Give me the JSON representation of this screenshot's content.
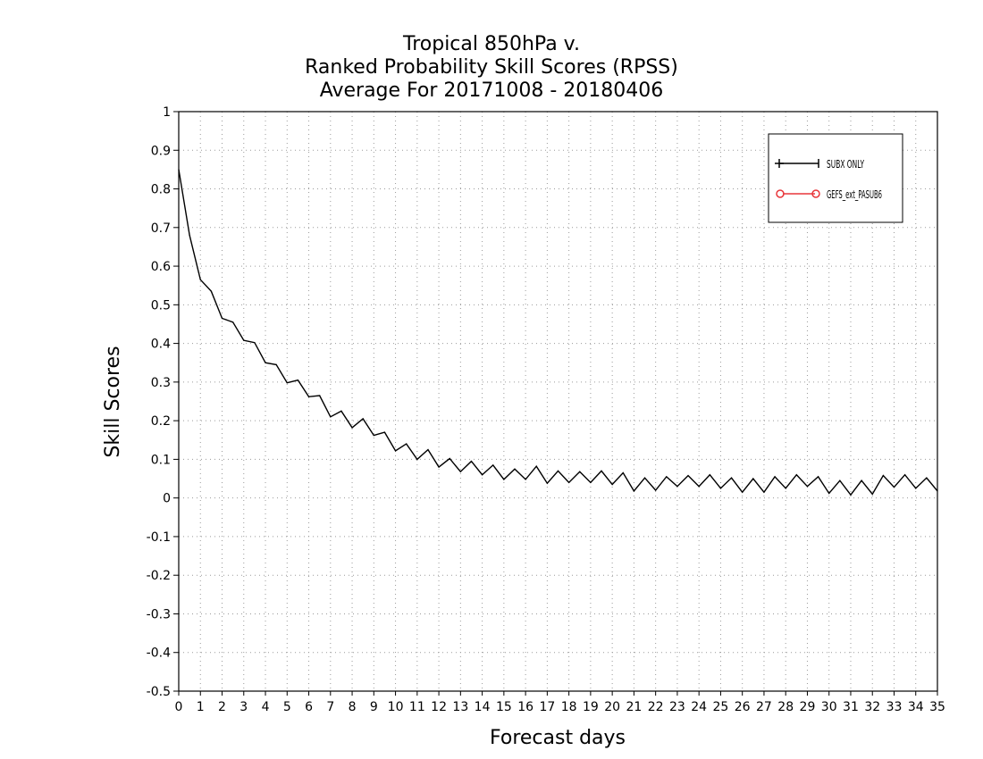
{
  "chart_data": {
    "type": "line",
    "title": [
      "Tropical 850hPa v.",
      "Ranked Probability Skill Scores (RPSS)",
      "Average For 20171008 - 20180406"
    ],
    "xlabel": "Forecast days",
    "ylabel": "Skill Scores",
    "xlim": [
      0,
      35
    ],
    "ylim": [
      -0.5,
      1
    ],
    "x_ticks": [
      "0",
      "1",
      "2",
      "3",
      "4",
      "5",
      "6",
      "7",
      "8",
      "9",
      "10",
      "11",
      "12",
      "13",
      "14",
      "15",
      "16",
      "17",
      "18",
      "19",
      "20",
      "21",
      "22",
      "23",
      "24",
      "25",
      "26",
      "27",
      "28",
      "29",
      "30",
      "31",
      "32",
      "33",
      "34",
      "35"
    ],
    "y_ticks": [
      "-0.5",
      "-0.4",
      "-0.3",
      "-0.2",
      "-0.1",
      "0",
      "0.1",
      "0.2",
      "0.3",
      "0.4",
      "0.5",
      "0.6",
      "0.7",
      "0.8",
      "0.9",
      "1"
    ],
    "grid": true,
    "legend_position": "top-right",
    "series": [
      {
        "name": "SUBX ONLY",
        "color": "#000000",
        "marker": "plus",
        "x": [
          0,
          0.5,
          1,
          1.5,
          2,
          2.5,
          3,
          3.5,
          4,
          4.5,
          5,
          5.5,
          6,
          6.5,
          7,
          7.5,
          8,
          8.5,
          9,
          9.5,
          10,
          10.5,
          11,
          11.5,
          12,
          12.5,
          13,
          13.5,
          14,
          14.5,
          15,
          15.5,
          16,
          16.5,
          17,
          17.5,
          18,
          18.5,
          19,
          19.5,
          20,
          20.5,
          21,
          21.5,
          22,
          22.5,
          23,
          23.5,
          24,
          24.5,
          25,
          25.5,
          26,
          26.5,
          27,
          27.5,
          28,
          28.5,
          29,
          29.5,
          30,
          30.5,
          31,
          31.5,
          32,
          32.5,
          33,
          33.5,
          34,
          34.5,
          35
        ],
        "values": [
          0.85,
          0.68,
          0.565,
          0.535,
          0.465,
          0.455,
          0.408,
          0.402,
          0.35,
          0.345,
          0.298,
          0.305,
          0.262,
          0.265,
          0.21,
          0.225,
          0.182,
          0.205,
          0.162,
          0.17,
          0.122,
          0.14,
          0.1,
          0.125,
          0.08,
          0.102,
          0.068,
          0.095,
          0.06,
          0.085,
          0.048,
          0.075,
          0.048,
          0.082,
          0.038,
          0.07,
          0.04,
          0.068,
          0.04,
          0.07,
          0.035,
          0.065,
          0.018,
          0.052,
          0.02,
          0.055,
          0.03,
          0.058,
          0.03,
          0.06,
          0.025,
          0.052,
          0.015,
          0.05,
          0.015,
          0.055,
          0.025,
          0.06,
          0.03,
          0.055,
          0.012,
          0.045,
          0.008,
          0.045,
          0.01,
          0.058,
          0.028,
          0.06,
          0.025,
          0.052,
          0.018
        ]
      },
      {
        "name": "GEFS_ext_PASUB6",
        "color": "#e8363a",
        "marker": "circle",
        "x": [],
        "values": []
      }
    ]
  }
}
